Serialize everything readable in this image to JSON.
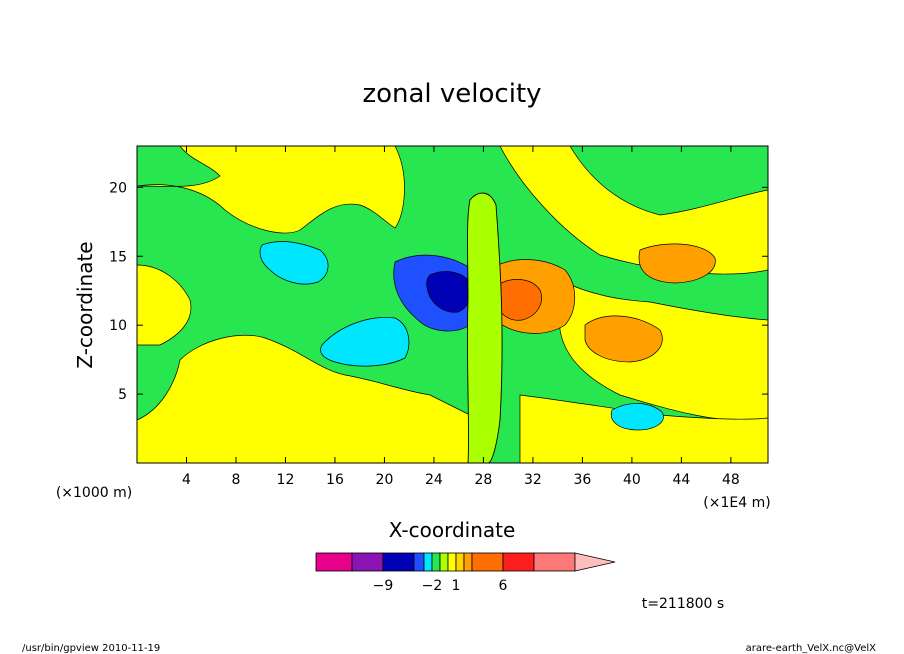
{
  "chart_data": {
    "type": "heatmap",
    "title": "zonal velocity",
    "xlabel": "X-coordinate",
    "ylabel": "Z-coordinate",
    "x_unit": "(×1E4 m)",
    "y_unit": "(×1000 m)",
    "xlim": [
      0,
      51
    ],
    "ylim": [
      0,
      23
    ],
    "x_ticks": [
      "4",
      "8",
      "12",
      "16",
      "20",
      "24",
      "28",
      "32",
      "36",
      "40",
      "44",
      "48"
    ],
    "y_ticks": [
      "5",
      "10",
      "15",
      "20"
    ],
    "grid": false,
    "colorbar": {
      "tick_labels": [
        "−9",
        "−2",
        "1",
        "6"
      ],
      "tick_values": [
        -9,
        -2,
        1,
        6
      ],
      "colors": [
        "#e6008c",
        "#8c14b4",
        "#0000b4",
        "#1e50ff",
        "#00e6ff",
        "#28e650",
        "#aaff00",
        "#ffff00",
        "#ffd200",
        "#ffa000",
        "#ff6e00",
        "#ff1e1e",
        "#ff7878",
        "#ffbebe"
      ],
      "extend": "max"
    },
    "regions": [
      {
        "label": "green background",
        "value": -0.5,
        "color": "#28e650"
      },
      {
        "label": "upper-left yellow",
        "value": 0.5,
        "color": "#ffff00"
      },
      {
        "label": "lower yellow band",
        "value": 0.5,
        "color": "#ffff00"
      },
      {
        "label": "cyan pocket near x=15,z=15",
        "value": -1.5,
        "color": "#00e6ff"
      },
      {
        "label": "cyan pocket near x=20,z=9",
        "value": -1.5,
        "color": "#00e6ff"
      },
      {
        "label": "blue jet near x=25,z=12",
        "value": -5,
        "color": "#0000b4"
      },
      {
        "label": "orange-red lobe near x=31,z=12",
        "value": 5,
        "color": "#ff6e00"
      },
      {
        "label": "orange patch near x=40,z=9",
        "value": 1.5,
        "color": "#ffa000"
      },
      {
        "label": "orange patch near x=43,z=15",
        "value": 1.5,
        "color": "#ffa000"
      },
      {
        "label": "cyan pocket near x=39,z=3",
        "value": -1.5,
        "color": "#00e6ff"
      }
    ]
  },
  "annotations": {
    "time": "t=211800 s",
    "footer_left": "/usr/bin/gpview   2010-11-19",
    "footer_right": "arare-earth_VelX.nc@VelX"
  }
}
